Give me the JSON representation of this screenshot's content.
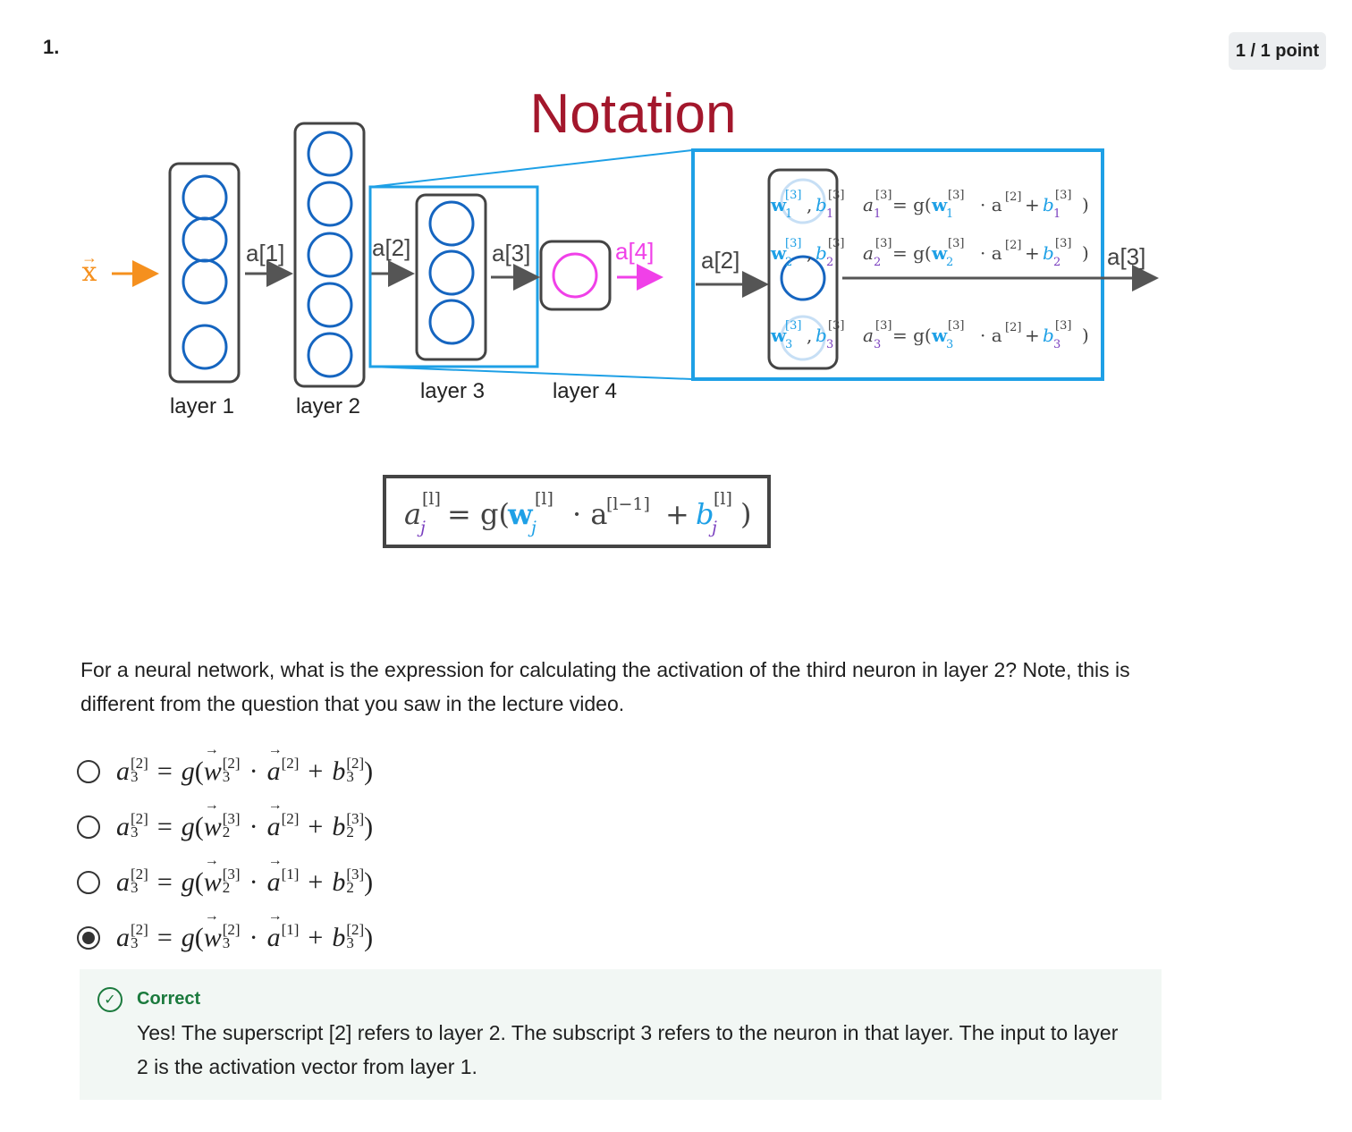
{
  "question": {
    "number": "1.",
    "points": "1 / 1 point",
    "text": "For a neural network, what is the expression for calculating the activation of the third neuron in layer 2? Note, this is different from the question that you saw in the lecture video."
  },
  "diagram": {
    "title": "Notation",
    "input_label": "x",
    "arrow_labels": [
      "a[1]",
      "a[2]",
      "a[3]",
      "a[4]"
    ],
    "layer_labels": [
      "layer 1",
      "layer 2",
      "layer 3",
      "layer 4"
    ],
    "zoom_input_label": "a[2]",
    "zoom_output_label": "a[3]",
    "colors": {
      "title": "#a3172c",
      "accent_blue": "#1ea0e6",
      "input_orange": "#f5901e",
      "output_pink": "#f040e8",
      "neuron_blue": "#1565c0"
    }
  },
  "options": [
    {
      "id": "opt-1",
      "selected": false,
      "a_sup": "[2]",
      "a_sub": "3",
      "w_sup": "[2]",
      "w_sub": "3",
      "in_sup": "[2]",
      "b_sup": "[2]",
      "b_sub": "3"
    },
    {
      "id": "opt-2",
      "selected": false,
      "a_sup": "[2]",
      "a_sub": "3",
      "w_sup": "[3]",
      "w_sub": "2",
      "in_sup": "[2]",
      "b_sup": "[3]",
      "b_sub": "2"
    },
    {
      "id": "opt-3",
      "selected": false,
      "a_sup": "[2]",
      "a_sub": "3",
      "w_sup": "[3]",
      "w_sub": "2",
      "in_sup": "[1]",
      "b_sup": "[3]",
      "b_sub": "2"
    },
    {
      "id": "opt-4",
      "selected": true,
      "a_sup": "[2]",
      "a_sub": "3",
      "w_sup": "[2]",
      "w_sub": "3",
      "in_sup": "[1]",
      "b_sup": "[2]",
      "b_sub": "3"
    }
  ],
  "feedback": {
    "status": "Correct",
    "text": "Yes! The superscript [2] refers to layer 2. The subscript 3 refers to the neuron in that layer. The input to layer 2 is the activation vector from layer 1."
  }
}
